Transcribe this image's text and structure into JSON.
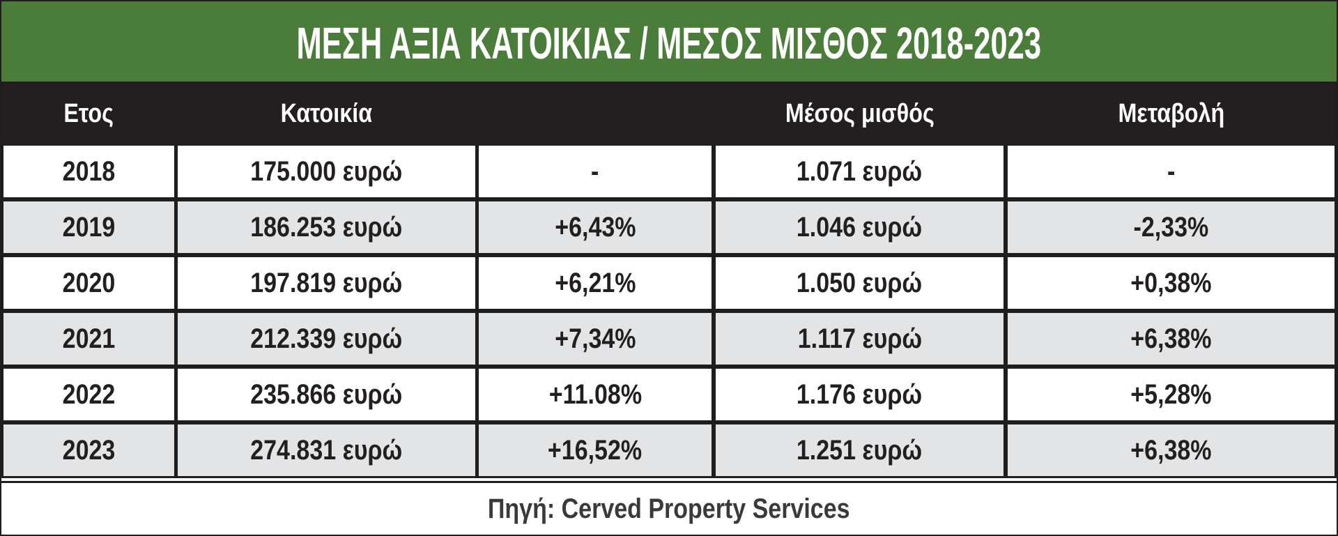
{
  "chart_data": {
    "type": "table",
    "title": "ΜΕΣΗ ΑΞΙΑ ΚΑΤΟΙΚΙΑΣ / ΜΕΣΟΣ ΜΙΣΘΟΣ 2018-2023",
    "columns": [
      "Ετος",
      "Κατοικία",
      "",
      "Μέσος μισθός",
      "Μεταβολή"
    ],
    "rows": [
      [
        "2018",
        "175.000 ευρώ",
        "-",
        "1.071 ευρώ",
        "-"
      ],
      [
        "2019",
        "186.253 ευρώ",
        "+6,43%",
        "1.046 ευρώ",
        "-2,33%"
      ],
      [
        "2020",
        "197.819 ευρώ",
        "+6,21%",
        "1.050 ευρώ",
        "+0,38%"
      ],
      [
        "2021",
        "212.339 ευρώ",
        "+7,34%",
        "1.117 ευρώ",
        "+6,38%"
      ],
      [
        "2022",
        "235.866 ευρώ",
        "+11.08%",
        "1.176 ευρώ",
        "+5,28%"
      ],
      [
        "2023",
        "274.831 ευρώ",
        "+16,52%",
        "1.251 ευρώ",
        "+6,38%"
      ]
    ],
    "source": "Πηγή: Cerved Property Services"
  },
  "colors": {
    "title_bg": "#4a7c3a",
    "header_bg": "#231f20",
    "row_alt_bg": "#e3e4e5",
    "text": "#231f20"
  }
}
